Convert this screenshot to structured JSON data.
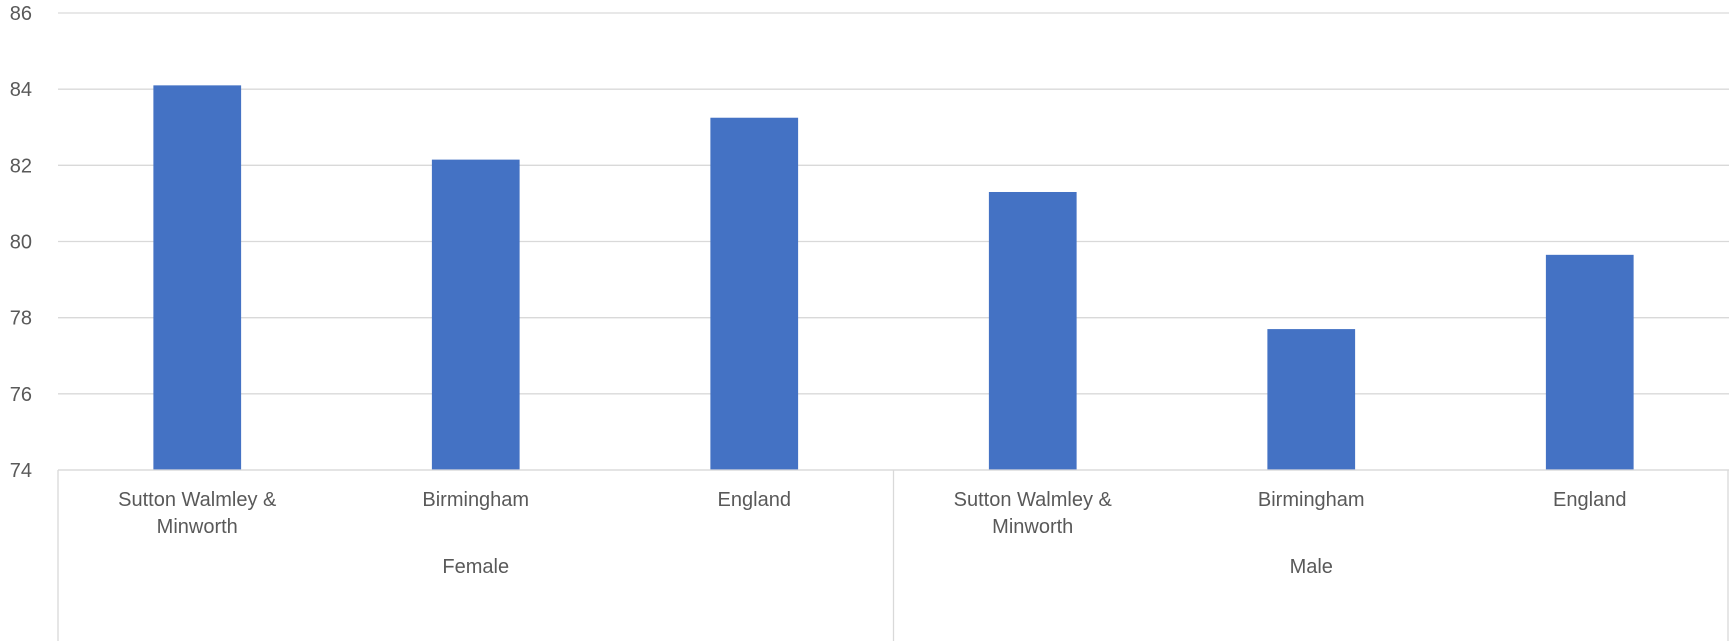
{
  "chart_data": {
    "type": "bar",
    "groups": [
      {
        "name": "Female",
        "categories": [
          "Sutton Walmley & Minworth",
          "Birmingham",
          "England"
        ],
        "values": [
          84.1,
          82.15,
          83.25
        ]
      },
      {
        "name": "Male",
        "categories": [
          "Sutton Walmley & Minworth",
          "Birmingham",
          "England"
        ],
        "values": [
          81.3,
          77.7,
          79.65
        ]
      }
    ],
    "category_label_lines": {
      "Sutton Walmley & Minworth": [
        "Sutton Walmley &",
        "Minworth"
      ],
      "Birmingham": [
        "Birmingham"
      ],
      "England": [
        "England"
      ]
    },
    "ylim": [
      74,
      86
    ],
    "yticks": [
      74,
      76,
      78,
      80,
      82,
      84,
      86
    ],
    "title": "",
    "xlabel": "",
    "ylabel": "",
    "grid": true,
    "legend": "none",
    "colors": {
      "bar": "#4472C4",
      "grid": "#D9D9D9",
      "axis": "#D9D9D9",
      "text": "#595959"
    }
  }
}
